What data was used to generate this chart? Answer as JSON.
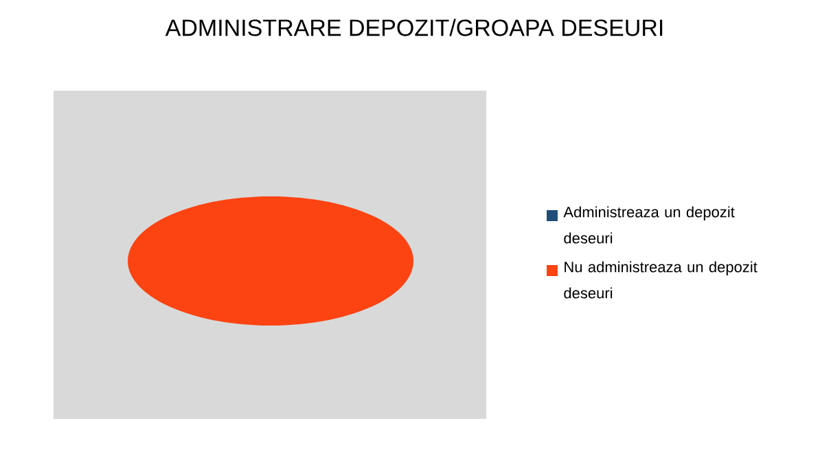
{
  "chart_data": {
    "type": "pie",
    "title": "ADMINISTRARE  DEPOZIT/GROAPA  DESEURI",
    "categories": [
      "Administreaza un depozit deseuri",
      "Nu administreaza un depozit deseuri"
    ],
    "values": [
      0,
      100
    ],
    "colors": [
      "#1f4e79",
      "#fc4312"
    ],
    "legend": "right"
  }
}
